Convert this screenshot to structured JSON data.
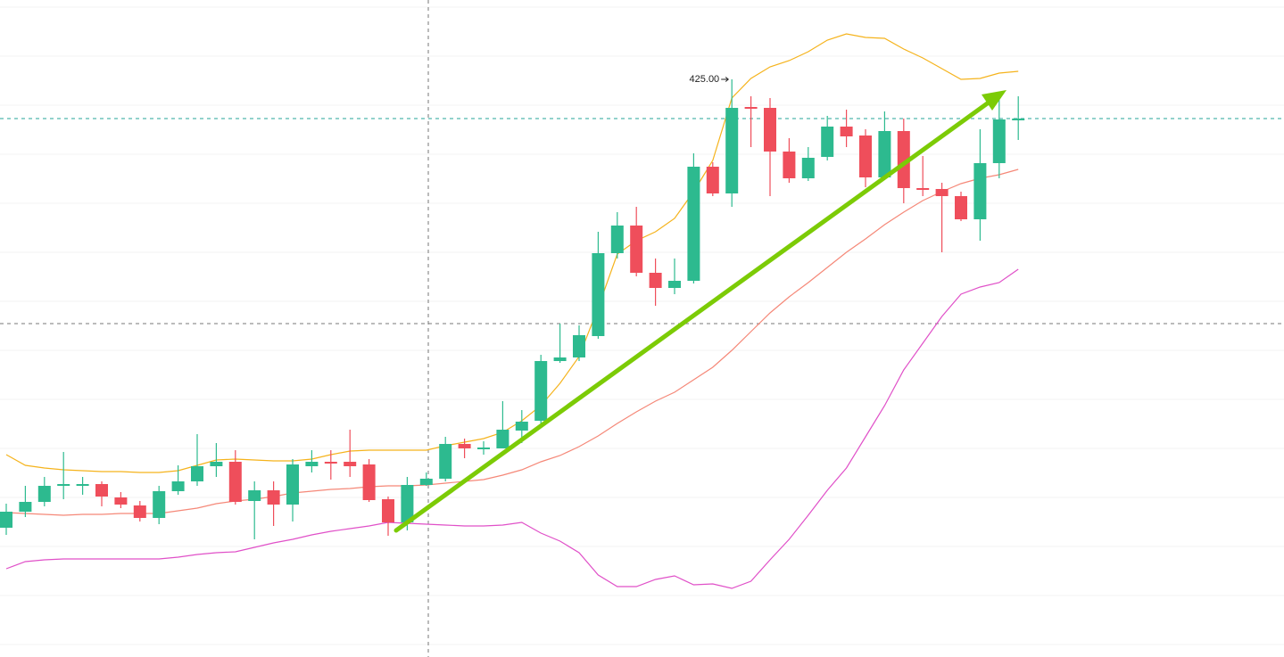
{
  "chart_data": {
    "type": "candlestick",
    "ylim": [
      360.2,
      433.9
    ],
    "up_color": "#2dba8f",
    "down_color": "#ef4e5b",
    "open": [
      374.7,
      376.5,
      377.6,
      379.5,
      379.4,
      379.6,
      378.1,
      377.2,
      375.8,
      378.8,
      379.9,
      381.6,
      382.1,
      377.7,
      378.9,
      377.3,
      381.6,
      382.1,
      382.1,
      381.8,
      377.9,
      375.3,
      379.5,
      380.2,
      384.1,
      383.5,
      383.6,
      385.6,
      386.7,
      393.4,
      393.8,
      396.2,
      405.5,
      408.6,
      403.3,
      401.6,
      402.4,
      415.2,
      412.2,
      421.9,
      421.8,
      416.9,
      413.9,
      416.3,
      419.7,
      418.7,
      414.0,
      419.2,
      412.8,
      412.7,
      411.9,
      409.3,
      415.6,
      420.4
    ],
    "high": [
      377.4,
      379.4,
      380.4,
      383.2,
      380.4,
      379.9,
      378.7,
      377.7,
      379.4,
      381.7,
      385.2,
      384.2,
      383.4,
      379.9,
      379.9,
      382.4,
      383.4,
      383.4,
      385.7,
      382.4,
      378.2,
      380.4,
      380.9,
      384.9,
      384.7,
      384.4,
      388.9,
      387.9,
      394.1,
      397.6,
      397.4,
      407.9,
      410.1,
      410.7,
      404.9,
      404.9,
      416.7,
      415.7,
      425.0,
      423.1,
      422.9,
      418.4,
      417.4,
      420.9,
      421.6,
      419.4,
      421.4,
      420.6,
      416.4,
      413.4,
      412.4,
      419.4,
      423.1,
      423.1
    ],
    "low": [
      373.9,
      375.9,
      377.1,
      377.9,
      378.4,
      377.1,
      376.9,
      375.4,
      375.1,
      378.4,
      379.4,
      380.4,
      377.3,
      373.4,
      374.9,
      375.4,
      380.9,
      380.1,
      380.4,
      377.6,
      373.8,
      374.4,
      379.4,
      379.9,
      382.5,
      382.9,
      383.6,
      384.2,
      386.4,
      393.2,
      393.4,
      395.9,
      404.9,
      402.9,
      399.6,
      400.9,
      402.1,
      411.9,
      410.7,
      417.4,
      411.9,
      413.4,
      413.6,
      415.9,
      417.4,
      412.9,
      413.7,
      411.1,
      411.9,
      405.6,
      409.1,
      406.9,
      413.9,
      418.2
    ],
    "close": [
      376.5,
      377.6,
      379.4,
      379.6,
      379.6,
      378.2,
      377.3,
      375.8,
      378.8,
      379.9,
      381.6,
      382.1,
      377.6,
      378.9,
      377.3,
      381.8,
      382.1,
      381.9,
      381.6,
      377.8,
      375.3,
      379.5,
      380.2,
      384.1,
      383.6,
      383.7,
      385.7,
      386.6,
      393.4,
      393.8,
      396.3,
      405.5,
      408.6,
      403.3,
      401.6,
      402.4,
      415.2,
      412.2,
      421.8,
      421.7,
      416.9,
      413.9,
      416.2,
      419.7,
      418.6,
      414.0,
      419.2,
      412.8,
      412.6,
      411.9,
      409.3,
      415.6,
      420.5,
      420.6
    ],
    "series": [
      {
        "color": "#f5b31c",
        "values": [
          382.9,
          381.7,
          381.4,
          381.2,
          381.1,
          381.0,
          381.0,
          380.9,
          380.9,
          381.1,
          381.7,
          382.3,
          382.4,
          382.3,
          382.2,
          382.2,
          382.4,
          382.9,
          383.3,
          383.4,
          383.4,
          383.4,
          383.4,
          383.9,
          384.3,
          384.7,
          385.4,
          386.7,
          388.4,
          390.9,
          393.9,
          399.4,
          405.4,
          406.9,
          407.9,
          409.4,
          412.4,
          415.9,
          422.9,
          425.1,
          426.4,
          427.1,
          428.1,
          429.4,
          430.1,
          429.7,
          429.6,
          428.4,
          427.4,
          426.2,
          425.0,
          425.1,
          425.7,
          425.9
        ]
      },
      {
        "color": "#f58878",
        "values": [
          376.4,
          376.3,
          376.2,
          376.1,
          376.2,
          376.2,
          376.3,
          376.3,
          376.3,
          376.6,
          376.9,
          377.4,
          377.7,
          377.9,
          378.2,
          378.6,
          378.8,
          379.0,
          379.1,
          379.3,
          379.4,
          379.4,
          379.5,
          379.7,
          379.9,
          380.1,
          380.6,
          381.2,
          382.1,
          382.8,
          383.8,
          385.0,
          386.4,
          387.7,
          388.9,
          389.9,
          391.3,
          392.7,
          394.6,
          396.7,
          398.8,
          400.6,
          402.2,
          403.9,
          405.6,
          407.1,
          408.7,
          410.1,
          411.4,
          412.4,
          413.3,
          413.9,
          414.3,
          414.9
        ]
      },
      {
        "color": "#e050c8",
        "values": [
          370.1,
          370.9,
          371.1,
          371.2,
          371.2,
          371.2,
          371.2,
          371.2,
          371.2,
          371.4,
          371.7,
          371.9,
          372.0,
          372.5,
          373.0,
          373.4,
          373.9,
          374.3,
          374.6,
          374.9,
          375.3,
          375.2,
          375.1,
          375.0,
          374.9,
          374.9,
          375.0,
          375.3,
          374.1,
          373.2,
          371.9,
          369.4,
          368.1,
          368.1,
          368.9,
          369.3,
          368.3,
          368.4,
          367.9,
          368.7,
          371.1,
          373.4,
          376.1,
          378.9,
          381.4,
          384.9,
          388.4,
          392.4,
          395.4,
          398.4,
          400.9,
          401.7,
          402.2,
          403.7
        ]
      }
    ],
    "annotation": {
      "label": "425.00",
      "value": 425
    }
  }
}
